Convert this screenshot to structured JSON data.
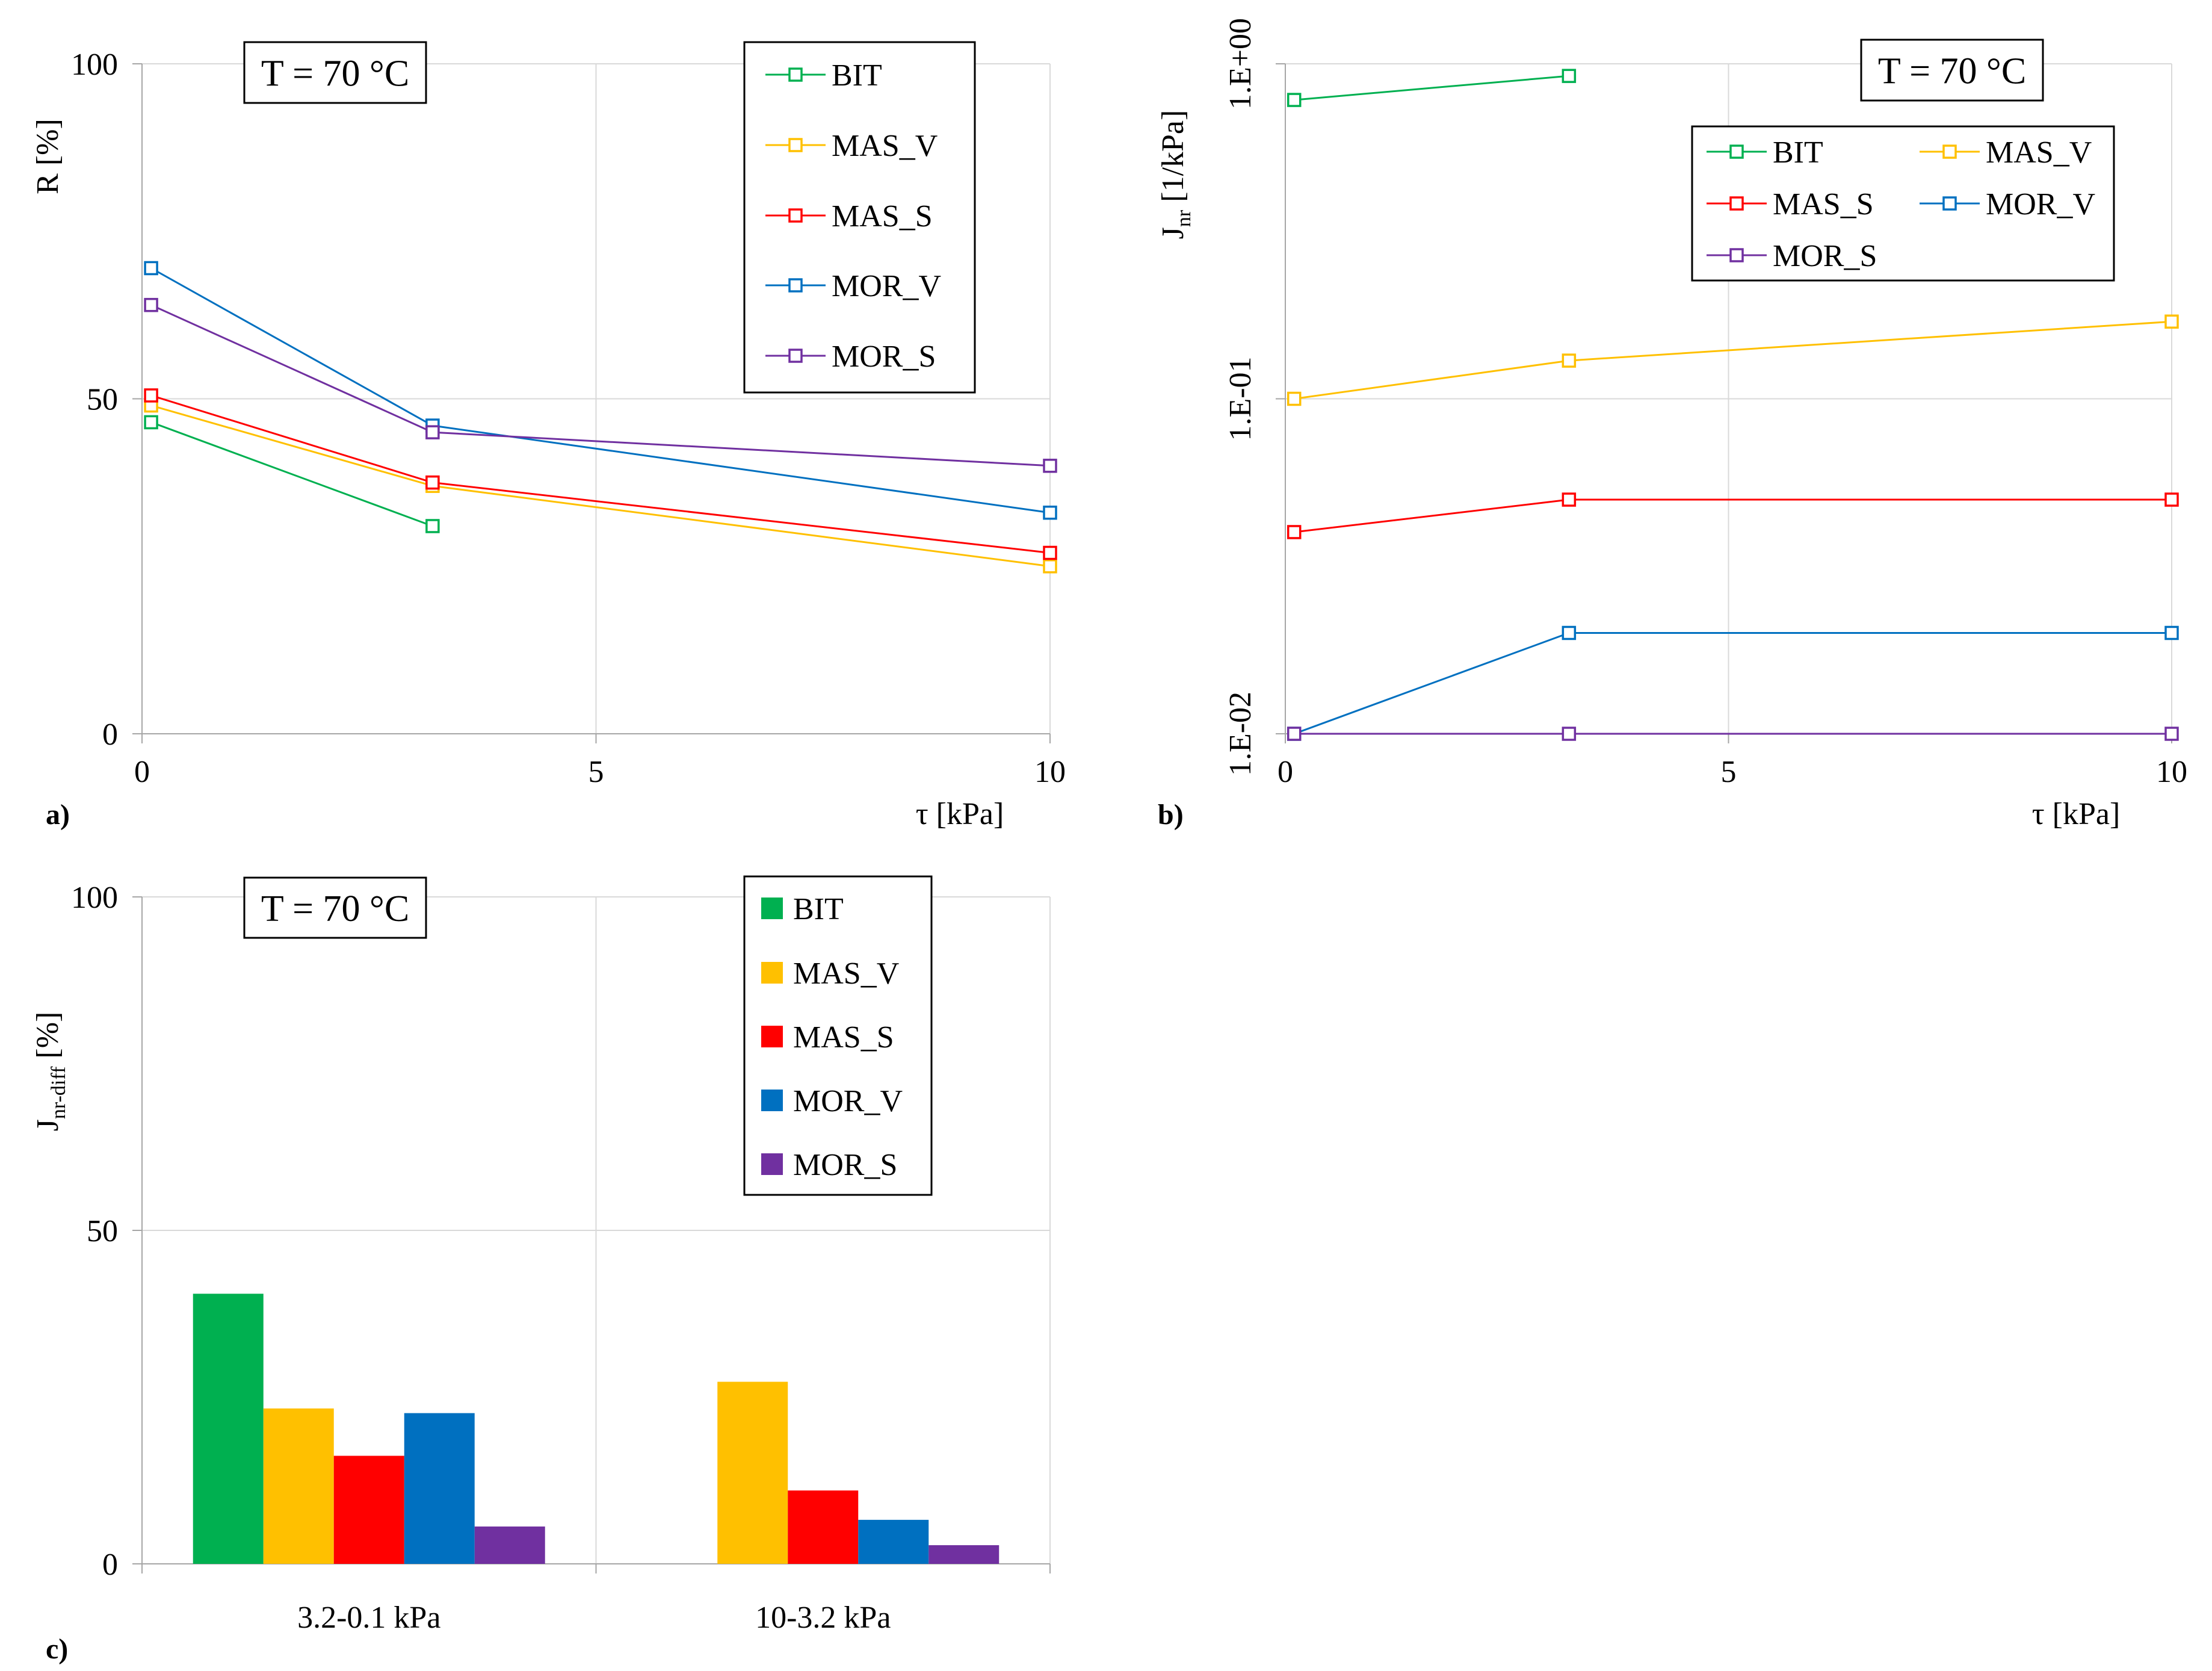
{
  "chart_data": [
    {
      "id": "a",
      "type": "line",
      "panel_label": "a)",
      "annotation": "T = 70 °C",
      "xlabel": "τ [kPa]",
      "ylabel": "R [%]",
      "xlim": [
        0,
        10
      ],
      "ylim": [
        0,
        100
      ],
      "xticks": [
        "0",
        "5",
        "10"
      ],
      "yticks": [
        "0",
        "50",
        "100"
      ],
      "grid": true,
      "legend_position": "top-right",
      "series": [
        {
          "name": "BIT",
          "color": "#00b050",
          "x": [
            0.1,
            3.2
          ],
          "y": [
            46.5,
            31
          ]
        },
        {
          "name": "MAS_V",
          "color": "#ffc000",
          "x": [
            0.1,
            3.2,
            10
          ],
          "y": [
            49,
            37,
            25
          ]
        },
        {
          "name": "MAS_S",
          "color": "#ff0000",
          "x": [
            0.1,
            3.2,
            10
          ],
          "y": [
            50.5,
            37.5,
            27
          ]
        },
        {
          "name": "MOR_V",
          "color": "#0070c0",
          "x": [
            0.1,
            3.2,
            10
          ],
          "y": [
            69.5,
            46,
            33
          ]
        },
        {
          "name": "MOR_S",
          "color": "#7030a0",
          "x": [
            0.1,
            3.2,
            10
          ],
          "y": [
            64,
            45,
            40
          ]
        }
      ]
    },
    {
      "id": "b",
      "type": "line",
      "panel_label": "b)",
      "annotation": "T = 70 °C",
      "xlabel": "τ [kPa]",
      "ylabel_main": "J",
      "ylabel_sub": "nr",
      "ylabel_rest": " [1/kPa]",
      "yscale": "log",
      "xlim": [
        0,
        10
      ],
      "ylim": [
        0.01,
        1
      ],
      "xticks": [
        "0",
        "5",
        "10"
      ],
      "yticks": [
        "1.E-02",
        "1.E-01",
        "1.E+00"
      ],
      "grid": true,
      "legend_position": "top-right",
      "series": [
        {
          "name": "BIT",
          "color": "#00b050",
          "x": [
            0.1,
            3.2
          ],
          "y": [
            0.78,
            0.92
          ]
        },
        {
          "name": "MAS_V",
          "color": "#ffc000",
          "x": [
            0.1,
            3.2,
            10
          ],
          "y": [
            0.1,
            0.13,
            0.17
          ]
        },
        {
          "name": "MAS_S",
          "color": "#ff0000",
          "x": [
            0.1,
            3.2,
            10
          ],
          "y": [
            0.04,
            0.05,
            0.05
          ]
        },
        {
          "name": "MOR_V",
          "color": "#0070c0",
          "x": [
            0.1,
            3.2,
            10
          ],
          "y": [
            0.01,
            0.02,
            0.02
          ]
        },
        {
          "name": "MOR_S",
          "color": "#7030a0",
          "x": [
            0.1,
            3.2,
            10
          ],
          "y": [
            0.01,
            0.01,
            0.01
          ]
        }
      ]
    },
    {
      "id": "c",
      "type": "bar",
      "panel_label": "c)",
      "annotation": "T = 70 °C",
      "ylabel_main": "J",
      "ylabel_sub": "nr-diff",
      "ylabel_rest": " [%]",
      "ylim": [
        0,
        100
      ],
      "yticks": [
        "0",
        "50",
        "100"
      ],
      "grid": true,
      "legend_position": "top-right",
      "categories": [
        "3.2-0.1 kPa",
        "10-3.2 kPa"
      ],
      "series": [
        {
          "name": "BIT",
          "color": "#00b050",
          "values": [
            40.5,
            null
          ]
        },
        {
          "name": "MAS_V",
          "color": "#ffc000",
          "values": [
            23.3,
            27.3
          ]
        },
        {
          "name": "MAS_S",
          "color": "#ff0000",
          "values": [
            16.2,
            11
          ]
        },
        {
          "name": "MOR_V",
          "color": "#0070c0",
          "values": [
            22.6,
            6.6
          ]
        },
        {
          "name": "MOR_S",
          "color": "#7030a0",
          "values": [
            5.6,
            2.8
          ]
        }
      ]
    }
  ]
}
